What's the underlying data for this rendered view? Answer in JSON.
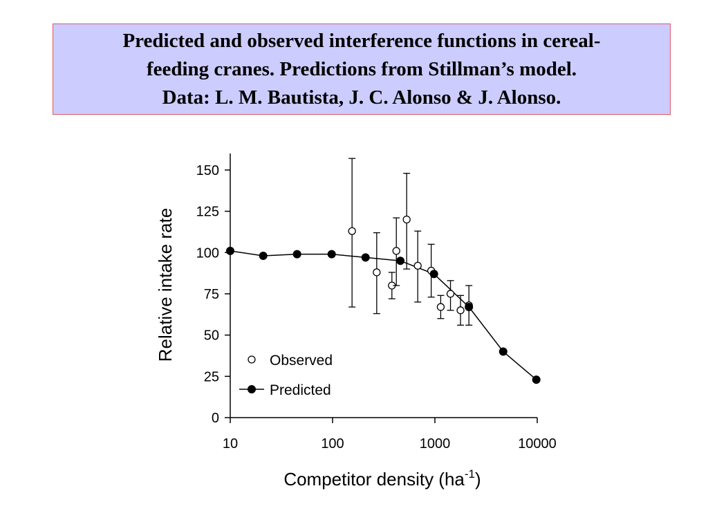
{
  "title_lines": [
    "Predicted and observed interference functions in cereal-",
    "feeding cranes. Predictions from Stillman’s model.",
    "Data: L. M. Bautista, J. C. Alonso & J. Alonso."
  ],
  "colors": {
    "title_bg": "#ccccff",
    "title_border": "#e0576a",
    "ink": "#000000"
  },
  "chart_data": {
    "type": "scatter",
    "xlabel": "Competitor density (ha",
    "xlabel_sup": "-1",
    "xlabel_close": ")",
    "ylabel": "Relative intake rate",
    "xscale": "log",
    "xlim": [
      10,
      10000
    ],
    "ylim": [
      0,
      160
    ],
    "x_ticks": [
      10,
      100,
      1000,
      10000
    ],
    "x_tick_labels": [
      "10",
      "100",
      "1000",
      "10000"
    ],
    "y_ticks": [
      0,
      25,
      50,
      75,
      100,
      125,
      150
    ],
    "y_tick_labels": [
      "0",
      "25",
      "50",
      "75",
      "100",
      "125",
      "150"
    ],
    "grid": false,
    "legend_position": "bottom-left",
    "series": [
      {
        "name": "Observed",
        "marker": "open-circle",
        "line": false,
        "points": [
          {
            "x": 155,
            "y": 113,
            "err_low": 67,
            "err_high": 157
          },
          {
            "x": 270,
            "y": 88,
            "err_low": 63,
            "err_high": 112
          },
          {
            "x": 380,
            "y": 80,
            "err_low": 72,
            "err_high": 88
          },
          {
            "x": 420,
            "y": 101,
            "err_low": 80,
            "err_high": 121
          },
          {
            "x": 530,
            "y": 120,
            "err_low": 90,
            "err_high": 148
          },
          {
            "x": 680,
            "y": 92,
            "err_low": 70,
            "err_high": 113
          },
          {
            "x": 920,
            "y": 89,
            "err_low": 73,
            "err_high": 105
          },
          {
            "x": 1140,
            "y": 67,
            "err_low": 60,
            "err_high": 74
          },
          {
            "x": 1420,
            "y": 75,
            "err_low": 65,
            "err_high": 83
          },
          {
            "x": 1780,
            "y": 65,
            "err_low": 56,
            "err_high": 74
          },
          {
            "x": 2150,
            "y": 68,
            "err_low": 56,
            "err_high": 80
          }
        ]
      },
      {
        "name": "Predicted",
        "marker": "filled-circle",
        "line": true,
        "points": [
          {
            "x": 10,
            "y": 101
          },
          {
            "x": 21,
            "y": 98
          },
          {
            "x": 45,
            "y": 99
          },
          {
            "x": 98,
            "y": 99
          },
          {
            "x": 210,
            "y": 97
          },
          {
            "x": 460,
            "y": 95
          },
          {
            "x": 980,
            "y": 87
          },
          {
            "x": 2150,
            "y": 67
          },
          {
            "x": 4650,
            "y": 40
          },
          {
            "x": 9800,
            "y": 23
          }
        ]
      }
    ]
  }
}
